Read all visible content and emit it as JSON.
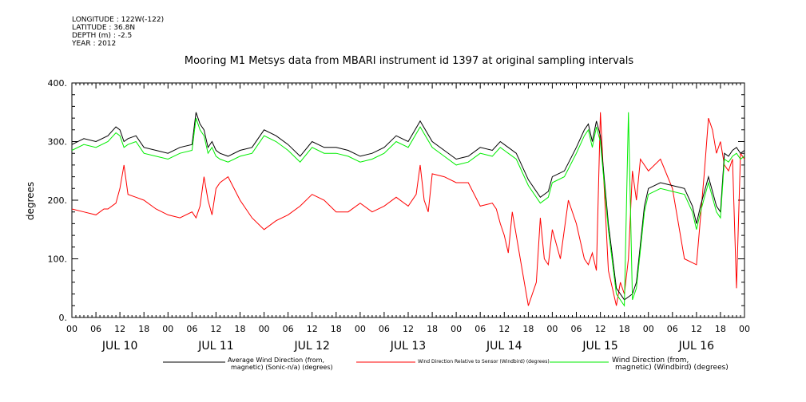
{
  "meta": {
    "longitude": "LONGITUDE : 122W(-122)",
    "latitude": "LATITUDE : 36.8N",
    "depth": "DEPTH (m) : -2.5",
    "year": "YEAR : 2012"
  },
  "chart_data": {
    "type": "line",
    "title": "Mooring M1 Metsys data from MBARI instrument id 1397 at original sampling intervals",
    "ylabel": "degrees",
    "ylim": [
      0,
      400
    ],
    "yticks": [
      "0.",
      "100.",
      "200.",
      "300.",
      "400."
    ],
    "xlim_hours": [
      0,
      168
    ],
    "xtick_labels": [
      "00",
      "06",
      "12",
      "18",
      "00",
      "06",
      "12",
      "18",
      "00",
      "06",
      "12",
      "18",
      "00",
      "06",
      "12",
      "18",
      "00",
      "06",
      "12",
      "18",
      "00",
      "06",
      "12",
      "18",
      "00",
      "06",
      "12",
      "18",
      "00"
    ],
    "day_labels": [
      "JUL 10",
      "JUL 11",
      "JUL 12",
      "JUL 13",
      "JUL 14",
      "JUL 15",
      "JUL 16"
    ],
    "grid": false,
    "legend_position": "bottom",
    "series": [
      {
        "name_lines": [
          "Average Wind Direction (from,",
          "magnetic) (Sonic-n/a) (degrees)"
        ],
        "color": "#000000",
        "x": [
          0,
          3,
          6,
          9,
          11,
          12,
          13,
          14,
          16,
          18,
          21,
          24,
          27,
          30,
          31,
          32,
          33,
          34,
          35,
          36,
          37,
          39,
          42,
          45,
          48,
          51,
          54,
          57,
          60,
          63,
          66,
          69,
          72,
          75,
          78,
          81,
          84,
          87,
          90,
          93,
          96,
          99,
          102,
          105,
          107,
          108,
          109,
          111,
          114,
          117,
          119,
          120,
          123,
          126,
          128,
          129,
          130,
          131,
          132,
          134,
          136,
          138,
          140,
          141,
          143,
          144,
          147,
          150,
          153,
          155,
          156,
          157,
          159,
          161,
          162,
          163,
          164,
          165,
          166,
          167,
          168
        ],
        "y": [
          295,
          305,
          300,
          310,
          325,
          320,
          300,
          305,
          310,
          290,
          285,
          280,
          290,
          295,
          350,
          330,
          320,
          290,
          300,
          285,
          280,
          275,
          285,
          290,
          320,
          310,
          295,
          275,
          300,
          290,
          290,
          285,
          275,
          280,
          290,
          310,
          300,
          335,
          300,
          285,
          270,
          275,
          290,
          285,
          300,
          295,
          290,
          280,
          235,
          205,
          215,
          240,
          250,
          290,
          320,
          330,
          300,
          335,
          310,
          160,
          50,
          30,
          40,
          60,
          190,
          220,
          230,
          225,
          220,
          190,
          160,
          190,
          240,
          190,
          180,
          280,
          275,
          285,
          290,
          280,
          285
        ]
      },
      {
        "name_lines": [
          "Wind Direction Relative to Sensor (Windbird) (degrees)"
        ],
        "color": "#ff0000",
        "x": [
          0,
          3,
          6,
          8,
          9,
          11,
          12,
          13,
          14,
          16,
          18,
          21,
          24,
          27,
          30,
          31,
          32,
          33,
          34,
          35,
          36,
          37,
          39,
          42,
          45,
          48,
          51,
          54,
          57,
          60,
          63,
          66,
          69,
          72,
          75,
          78,
          81,
          84,
          86,
          87,
          88,
          89,
          90,
          93,
          96,
          99,
          102,
          105,
          106,
          107,
          108,
          109,
          110,
          111,
          112,
          114,
          116,
          117,
          118,
          119,
          120,
          122,
          124,
          126,
          128,
          129,
          130,
          131,
          132,
          134,
          136,
          137,
          138,
          139,
          140,
          141,
          142,
          144,
          147,
          150,
          153,
          156,
          158,
          159,
          160,
          161,
          162,
          163,
          164,
          165,
          166,
          167,
          168
        ],
        "y": [
          185,
          180,
          175,
          185,
          185,
          195,
          220,
          260,
          210,
          205,
          200,
          185,
          175,
          170,
          180,
          170,
          190,
          240,
          200,
          175,
          220,
          230,
          240,
          200,
          170,
          150,
          165,
          175,
          190,
          210,
          200,
          180,
          180,
          195,
          180,
          190,
          205,
          190,
          210,
          260,
          200,
          180,
          245,
          240,
          230,
          230,
          190,
          195,
          185,
          160,
          140,
          110,
          180,
          140,
          100,
          20,
          60,
          170,
          100,
          90,
          150,
          100,
          200,
          160,
          100,
          90,
          110,
          80,
          350,
          80,
          20,
          60,
          40,
          100,
          250,
          200,
          270,
          250,
          270,
          220,
          100,
          90,
          250,
          340,
          320,
          280,
          300,
          260,
          250,
          270,
          50,
          280,
          270
        ]
      },
      {
        "name_lines": [
          "Wind Direction (from,",
          "magnetic) (Windbird) (degrees)"
        ],
        "color": "#00ee00",
        "x": [
          0,
          3,
          6,
          9,
          11,
          12,
          13,
          14,
          16,
          18,
          21,
          24,
          27,
          30,
          31,
          32,
          33,
          34,
          35,
          36,
          37,
          39,
          42,
          45,
          48,
          51,
          54,
          57,
          60,
          63,
          66,
          69,
          72,
          75,
          78,
          81,
          84,
          87,
          90,
          93,
          96,
          99,
          102,
          105,
          107,
          108,
          109,
          111,
          114,
          117,
          119,
          120,
          123,
          126,
          128,
          129,
          130,
          131,
          132,
          134,
          136,
          138,
          139,
          140,
          141,
          143,
          144,
          147,
          150,
          153,
          155,
          156,
          157,
          159,
          161,
          162,
          163,
          164,
          165,
          166,
          167,
          168
        ],
        "y": [
          285,
          295,
          290,
          300,
          315,
          310,
          290,
          295,
          300,
          280,
          275,
          270,
          280,
          285,
          340,
          320,
          310,
          280,
          290,
          275,
          270,
          265,
          275,
          280,
          310,
          300,
          285,
          265,
          290,
          280,
          280,
          275,
          265,
          270,
          280,
          300,
          290,
          325,
          290,
          275,
          260,
          265,
          280,
          275,
          290,
          285,
          280,
          270,
          225,
          195,
          205,
          230,
          240,
          280,
          310,
          320,
          290,
          325,
          300,
          150,
          40,
          20,
          350,
          30,
          50,
          180,
          210,
          220,
          215,
          210,
          180,
          150,
          180,
          230,
          180,
          170,
          270,
          265,
          275,
          280,
          270,
          275
        ]
      }
    ]
  }
}
